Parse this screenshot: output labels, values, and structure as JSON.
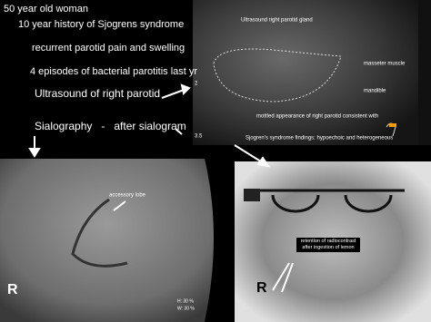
{
  "header": {
    "lines": [
      "50 year old woman",
      "10 year history of Sjogrens syndrome",
      "recurrent parotid pain and swelling",
      "4 episodes of bacterial parotitis last yr"
    ],
    "ultrasound_caption": "Ultrasound of right parotid",
    "sialography_caption": "Sialography   -   after sialogram"
  },
  "ultrasound": {
    "labels": [
      "Ultrasound right parotid gland",
      "masseter muscle",
      "mandible"
    ],
    "findings": [
      "mottled appearance of right parotid consistent with",
      "Sjogren's syndrome findings: hypoechoic and heterogeneous"
    ],
    "scale": [
      "2",
      "3.5"
    ]
  },
  "xray_left": {
    "label": "accessory lobe",
    "side": "R",
    "footer": [
      "H: 30 %",
      "W: 30 %"
    ]
  },
  "xray_right": {
    "label": "retention of radiocontrast after ingestion of lemon",
    "side": "R"
  }
}
